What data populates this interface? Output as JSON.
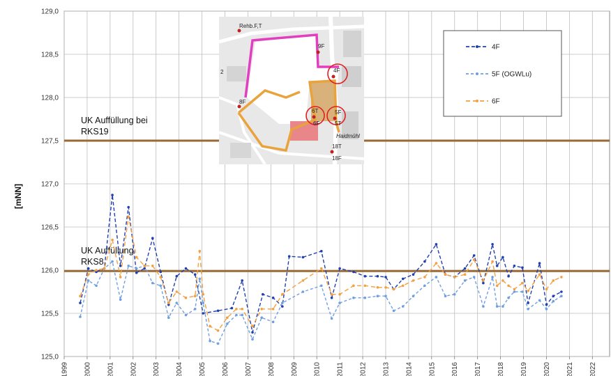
{
  "chart_data": {
    "type": "line",
    "title": "",
    "xlabel": "",
    "ylabel": "[mNN]",
    "xlim": [
      1999,
      2022.75
    ],
    "ylim": [
      125.0,
      129.0
    ],
    "grid": true,
    "legend_position": "top-right",
    "x_ticks": [
      "1999",
      "2000",
      "2001",
      "2002",
      "2003",
      "2004",
      "2005",
      "2006",
      "2007",
      "2008",
      "2009",
      "2010",
      "2011",
      "2012",
      "2013",
      "2014",
      "2015",
      "2016",
      "2017",
      "2018",
      "2019",
      "2020",
      "2021",
      "2022"
    ],
    "y_ticks": [
      "125,0",
      "125,5",
      "126,0",
      "126,5",
      "127,0",
      "127,5",
      "128,0",
      "128,5",
      "129,0"
    ],
    "reference_lines": [
      {
        "label_line1": "UK Auffüllung bei",
        "label_line2": "RKS19",
        "value": 127.5,
        "color": "#9a6a36"
      },
      {
        "label_line1": "UK Auffüllung",
        "label_line2": "RKS8",
        "value": 125.99,
        "color": "#9a6a36"
      }
    ],
    "series": [
      {
        "name": "4F",
        "color": "#2040b0",
        "dash": "5,3",
        "points": [
          [
            1999.7,
            125.62
          ],
          [
            2000.05,
            126.02
          ],
          [
            2000.4,
            125.98
          ],
          [
            2000.75,
            126.02
          ],
          [
            2001.1,
            126.87
          ],
          [
            2001.45,
            126.05
          ],
          [
            2001.8,
            126.73
          ],
          [
            2002.15,
            125.97
          ],
          [
            2002.5,
            126.02
          ],
          [
            2002.85,
            126.37
          ],
          [
            2003.2,
            125.98
          ],
          [
            2003.55,
            125.6
          ],
          [
            2003.9,
            125.93
          ],
          [
            2004.3,
            126.02
          ],
          [
            2004.7,
            125.95
          ],
          [
            2005.05,
            125.5
          ],
          [
            2005.7,
            125.53
          ],
          [
            2006.3,
            125.56
          ],
          [
            2006.75,
            125.88
          ],
          [
            2007.2,
            125.28
          ],
          [
            2007.65,
            125.72
          ],
          [
            2008.1,
            125.68
          ],
          [
            2008.5,
            125.58
          ],
          [
            2008.8,
            126.16
          ],
          [
            2009.4,
            126.15
          ],
          [
            2010.2,
            126.22
          ],
          [
            2010.65,
            125.68
          ],
          [
            2011.0,
            126.02
          ],
          [
            2011.6,
            125.98
          ],
          [
            2012.1,
            125.93
          ],
          [
            2012.65,
            125.93
          ],
          [
            2013.0,
            125.92
          ],
          [
            2013.35,
            125.78
          ],
          [
            2013.75,
            125.9
          ],
          [
            2014.2,
            125.95
          ],
          [
            2014.7,
            126.1
          ],
          [
            2015.2,
            126.3
          ],
          [
            2015.6,
            125.95
          ],
          [
            2016.0,
            125.92
          ],
          [
            2016.45,
            126.02
          ],
          [
            2016.85,
            126.17
          ],
          [
            2017.25,
            125.85
          ],
          [
            2017.65,
            126.3
          ],
          [
            2017.85,
            126.05
          ],
          [
            2018.1,
            126.15
          ],
          [
            2018.35,
            125.93
          ],
          [
            2018.6,
            126.05
          ],
          [
            2018.95,
            126.03
          ],
          [
            2019.2,
            125.62
          ],
          [
            2019.7,
            126.08
          ],
          [
            2020.0,
            125.6
          ],
          [
            2020.3,
            125.7
          ],
          [
            2020.65,
            125.75
          ]
        ]
      },
      {
        "name": "5F (OGWLu)",
        "color": "#6f9fe0",
        "dash": "4,3",
        "points": [
          [
            1999.7,
            125.46
          ],
          [
            2000.05,
            125.88
          ],
          [
            2000.4,
            125.82
          ],
          [
            2000.75,
            126.02
          ],
          [
            2001.1,
            126.1
          ],
          [
            2001.45,
            125.66
          ],
          [
            2001.8,
            126.05
          ],
          [
            2002.15,
            126.02
          ],
          [
            2002.5,
            126.05
          ],
          [
            2002.85,
            125.85
          ],
          [
            2003.2,
            125.82
          ],
          [
            2003.55,
            125.45
          ],
          [
            2003.9,
            125.62
          ],
          [
            2004.3,
            125.48
          ],
          [
            2004.7,
            125.55
          ],
          [
            2004.9,
            125.9
          ],
          [
            2005.05,
            125.62
          ],
          [
            2005.35,
            125.18
          ],
          [
            2005.7,
            125.15
          ],
          [
            2006.1,
            125.38
          ],
          [
            2006.5,
            125.48
          ],
          [
            2006.75,
            125.48
          ],
          [
            2007.2,
            125.2
          ],
          [
            2007.6,
            125.45
          ],
          [
            2008.1,
            125.4
          ],
          [
            2008.5,
            125.62
          ],
          [
            2009.4,
            125.75
          ],
          [
            2010.2,
            125.82
          ],
          [
            2010.65,
            125.44
          ],
          [
            2011.0,
            125.62
          ],
          [
            2011.6,
            125.68
          ],
          [
            2012.1,
            125.68
          ],
          [
            2012.65,
            125.7
          ],
          [
            2013.0,
            125.7
          ],
          [
            2013.35,
            125.53
          ],
          [
            2013.75,
            125.58
          ],
          [
            2014.2,
            125.7
          ],
          [
            2014.7,
            125.82
          ],
          [
            2015.2,
            125.92
          ],
          [
            2015.6,
            125.7
          ],
          [
            2016.0,
            125.72
          ],
          [
            2016.45,
            125.88
          ],
          [
            2016.85,
            125.92
          ],
          [
            2017.25,
            125.58
          ],
          [
            2017.65,
            125.92
          ],
          [
            2017.85,
            125.58
          ],
          [
            2018.1,
            125.58
          ],
          [
            2018.35,
            125.68
          ],
          [
            2018.6,
            125.75
          ],
          [
            2018.95,
            125.75
          ],
          [
            2019.2,
            125.55
          ],
          [
            2019.7,
            125.65
          ],
          [
            2020.0,
            125.55
          ],
          [
            2020.3,
            125.64
          ],
          [
            2020.65,
            125.7
          ]
        ]
      },
      {
        "name": "6F",
        "color": "#f4a040",
        "dash": "6,4",
        "points": [
          [
            1999.7,
            125.7
          ],
          [
            2000.05,
            125.95
          ],
          [
            2000.4,
            126.0
          ],
          [
            2000.75,
            126.02
          ],
          [
            2001.1,
            126.35
          ],
          [
            2001.45,
            125.92
          ],
          [
            2001.8,
            126.62
          ],
          [
            2002.15,
            126.15
          ],
          [
            2002.5,
            126.05
          ],
          [
            2002.85,
            126.05
          ],
          [
            2003.2,
            125.92
          ],
          [
            2003.55,
            125.62
          ],
          [
            2003.9,
            125.75
          ],
          [
            2004.3,
            125.68
          ],
          [
            2004.7,
            125.7
          ],
          [
            2004.9,
            126.22
          ],
          [
            2005.05,
            125.72
          ],
          [
            2005.35,
            125.35
          ],
          [
            2005.7,
            125.3
          ],
          [
            2006.1,
            125.45
          ],
          [
            2006.5,
            125.55
          ],
          [
            2006.75,
            125.55
          ],
          [
            2007.2,
            125.35
          ],
          [
            2007.6,
            125.55
          ],
          [
            2008.1,
            125.55
          ],
          [
            2008.5,
            125.72
          ],
          [
            2009.4,
            125.88
          ],
          [
            2010.2,
            126.02
          ],
          [
            2010.65,
            125.72
          ],
          [
            2011.0,
            125.72
          ],
          [
            2011.6,
            125.82
          ],
          [
            2012.1,
            125.82
          ],
          [
            2012.65,
            125.8
          ],
          [
            2013.0,
            125.8
          ],
          [
            2013.35,
            125.78
          ],
          [
            2013.75,
            125.82
          ],
          [
            2014.2,
            125.88
          ],
          [
            2014.7,
            125.92
          ],
          [
            2015.2,
            126.08
          ],
          [
            2015.6,
            125.95
          ],
          [
            2016.0,
            125.92
          ],
          [
            2016.45,
            125.95
          ],
          [
            2016.85,
            126.12
          ],
          [
            2017.25,
            125.88
          ],
          [
            2017.65,
            126.1
          ],
          [
            2017.85,
            125.82
          ],
          [
            2018.1,
            125.88
          ],
          [
            2018.35,
            125.82
          ],
          [
            2018.6,
            125.78
          ],
          [
            2018.95,
            125.85
          ],
          [
            2019.2,
            125.76
          ],
          [
            2019.7,
            125.95
          ],
          [
            2020.0,
            125.78
          ],
          [
            2020.3,
            125.88
          ],
          [
            2020.65,
            125.92
          ]
        ]
      }
    ]
  },
  "inset_map": {
    "labels": [
      "Rehb.F,T",
      "9F",
      "4F",
      "8F",
      "6T",
      "6F",
      "5F",
      "5T",
      "18T",
      "18F",
      "Haidmühl",
      "2"
    ]
  }
}
